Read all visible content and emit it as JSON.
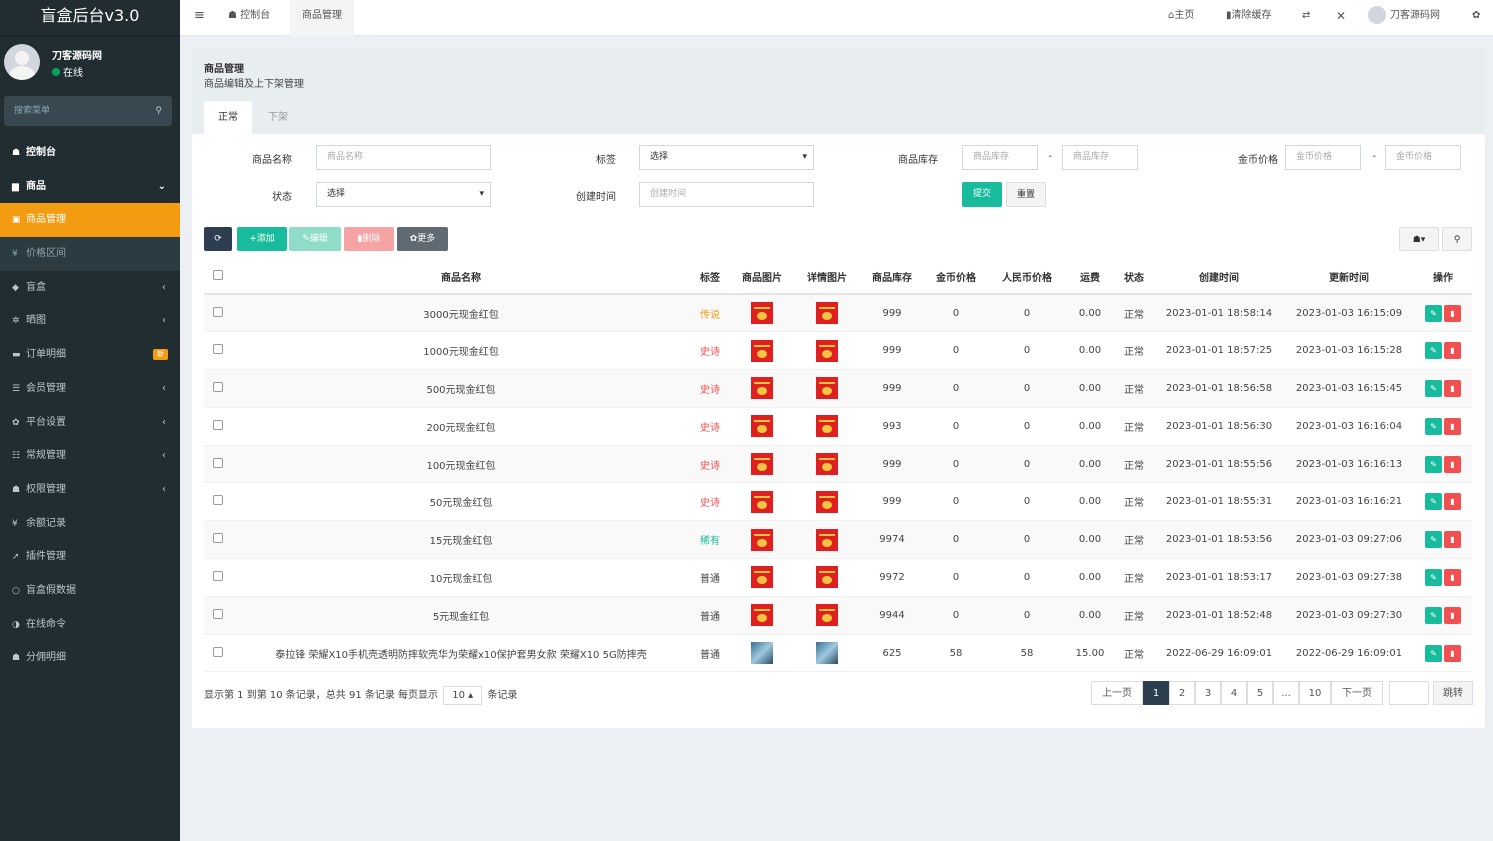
{
  "app_title": "盲盒后台v3.0",
  "user": {
    "name": "刀客源码网",
    "status": "在线"
  },
  "search_placeholder": "搜索菜单",
  "menu": [
    {
      "label": "控制台",
      "icon": "dashboard-icon",
      "glyph": "☗",
      "style": "bold",
      "arrow": ""
    },
    {
      "label": "商品",
      "icon": "shopping-bag-icon",
      "glyph": "▆",
      "style": "bold",
      "arrow": "⌄"
    },
    {
      "label": "商品管理",
      "icon": "box-icon",
      "glyph": "▣",
      "style": "active",
      "arrow": ""
    },
    {
      "label": "价格区间",
      "icon": "yen-icon",
      "glyph": "¥",
      "style": "sub",
      "arrow": ""
    },
    {
      "label": "盲盒",
      "icon": "cube-icon",
      "glyph": "◆",
      "style": "",
      "arrow": "‹"
    },
    {
      "label": "晒图",
      "icon": "settings-icon",
      "glyph": "✲",
      "style": "",
      "arrow": "‹"
    },
    {
      "label": "订单明细",
      "icon": "cart-icon",
      "glyph": "▬",
      "style": "",
      "arrow": "",
      "badge": "新"
    },
    {
      "label": "会员管理",
      "icon": "list-icon",
      "glyph": "☰",
      "style": "",
      "arrow": "‹"
    },
    {
      "label": "平台设置",
      "icon": "gear-icon",
      "glyph": "✿",
      "style": "",
      "arrow": "‹"
    },
    {
      "label": "常规管理",
      "icon": "database-icon",
      "glyph": "☷",
      "style": "",
      "arrow": "‹"
    },
    {
      "label": "权限管理",
      "icon": "users-icon",
      "glyph": "☗",
      "style": "",
      "arrow": "‹"
    },
    {
      "label": "余额记录",
      "icon": "yen-icon",
      "glyph": "¥",
      "style": "",
      "arrow": ""
    },
    {
      "label": "插件管理",
      "icon": "rocket-icon",
      "glyph": "➚",
      "style": "",
      "arrow": ""
    },
    {
      "label": "盲盒假数据",
      "icon": "circle-icon",
      "glyph": "○",
      "style": "",
      "arrow": ""
    },
    {
      "label": "在线命令",
      "icon": "terminal-icon",
      "glyph": "◑",
      "style": "",
      "arrow": ""
    },
    {
      "label": "分佣明细",
      "icon": "users-icon",
      "glyph": "☗",
      "style": "",
      "arrow": ""
    }
  ],
  "topbar": {
    "menu_glyph": "≡",
    "tab1": "控制台",
    "tab2": "商品管理",
    "home": "主页",
    "clear_cache": "清除缓存",
    "username": "刀客源码网"
  },
  "page": {
    "title": "商品管理",
    "subtitle": "商品编辑及上下架管理",
    "tab_normal": "正常",
    "tab_off": "下架"
  },
  "filters": {
    "name_label": "商品名称",
    "name_ph": "商品名称",
    "tag_label": "标签",
    "tag_value": "选择",
    "stock_label": "商品库存",
    "stock_ph": "商品库存",
    "dash": "-",
    "coin_label": "金币价格",
    "coin_ph": "金币价格",
    "status_label": "状态",
    "status_value": "选择",
    "created_label": "创建时间",
    "created_ph": "创建时间",
    "submit": "提交",
    "reset": "重置"
  },
  "toolbar": {
    "refresh": "⟳",
    "add": "+添加",
    "edit": "✎编辑",
    "delete": "删除",
    "more": "更多"
  },
  "columns": [
    "商品名称",
    "标签",
    "商品图片",
    "详情图片",
    "商品库存",
    "金币价格",
    "人民币价格",
    "运费",
    "状态",
    "创建时间",
    "更新时间",
    "操作"
  ],
  "rows": [
    {
      "name": "3000元现金红包",
      "tag": "传说",
      "tag_color": "#f39c12",
      "img": "red",
      "stock": "999",
      "coin": "0",
      "rmb": "0",
      "ship": "0.00",
      "status": "正常",
      "created": "2023-01-01 18:58:14",
      "updated": "2023-01-03 16:15:09"
    },
    {
      "name": "1000元现金红包",
      "tag": "史诗",
      "tag_color": "#f05050",
      "img": "red",
      "stock": "999",
      "coin": "0",
      "rmb": "0",
      "ship": "0.00",
      "status": "正常",
      "created": "2023-01-01 18:57:25",
      "updated": "2023-01-03 16:15:28"
    },
    {
      "name": "500元现金红包",
      "tag": "史诗",
      "tag_color": "#f05050",
      "img": "red",
      "stock": "999",
      "coin": "0",
      "rmb": "0",
      "ship": "0.00",
      "status": "正常",
      "created": "2023-01-01 18:56:58",
      "updated": "2023-01-03 16:15:45"
    },
    {
      "name": "200元现金红包",
      "tag": "史诗",
      "tag_color": "#f05050",
      "img": "red",
      "stock": "993",
      "coin": "0",
      "rmb": "0",
      "ship": "0.00",
      "status": "正常",
      "created": "2023-01-01 18:56:30",
      "updated": "2023-01-03 16:16:04"
    },
    {
      "name": "100元现金红包",
      "tag": "史诗",
      "tag_color": "#f05050",
      "img": "red",
      "stock": "999",
      "coin": "0",
      "rmb": "0",
      "ship": "0.00",
      "status": "正常",
      "created": "2023-01-01 18:55:56",
      "updated": "2023-01-03 16:16:13"
    },
    {
      "name": "50元现金红包",
      "tag": "史诗",
      "tag_color": "#f05050",
      "img": "red",
      "stock": "999",
      "coin": "0",
      "rmb": "0",
      "ship": "0.00",
      "status": "正常",
      "created": "2023-01-01 18:55:31",
      "updated": "2023-01-03 16:16:21"
    },
    {
      "name": "15元现金红包",
      "tag": "稀有",
      "tag_color": "#18bc9c",
      "img": "red",
      "stock": "9974",
      "coin": "0",
      "rmb": "0",
      "ship": "0.00",
      "status": "正常",
      "created": "2023-01-01 18:53:56",
      "updated": "2023-01-03 09:27:06"
    },
    {
      "name": "10元现金红包",
      "tag": "普通",
      "tag_color": "#444444",
      "img": "red",
      "stock": "9972",
      "coin": "0",
      "rmb": "0",
      "ship": "0.00",
      "status": "正常",
      "created": "2023-01-01 18:53:17",
      "updated": "2023-01-03 09:27:38"
    },
    {
      "name": "5元现金红包",
      "tag": "普通",
      "tag_color": "#444444",
      "img": "red",
      "stock": "9944",
      "coin": "0",
      "rmb": "0",
      "ship": "0.00",
      "status": "正常",
      "created": "2023-01-01 18:52:48",
      "updated": "2023-01-03 09:27:30"
    },
    {
      "name": "泰拉锋 荣耀X10手机壳透明防摔软壳华为荣耀x10保护套男女款 荣耀X10 5G防摔壳",
      "tag": "普通",
      "tag_color": "#444444",
      "img": "phone",
      "stock": "625",
      "coin": "58",
      "rmb": "58",
      "ship": "15.00",
      "status": "正常",
      "created": "2022-06-29 16:09:01",
      "updated": "2022-06-29 16:09:01"
    }
  ],
  "pagination": {
    "summary_a": "显示第 1 到第 10 条记录，总共 91 条记录 每页显示",
    "per_page": "10",
    "summary_b": "条记录",
    "prev": "上一页",
    "pages": [
      "1",
      "2",
      "3",
      "4",
      "5",
      "...",
      "10"
    ],
    "next": "下一页",
    "jump": "跳转"
  }
}
